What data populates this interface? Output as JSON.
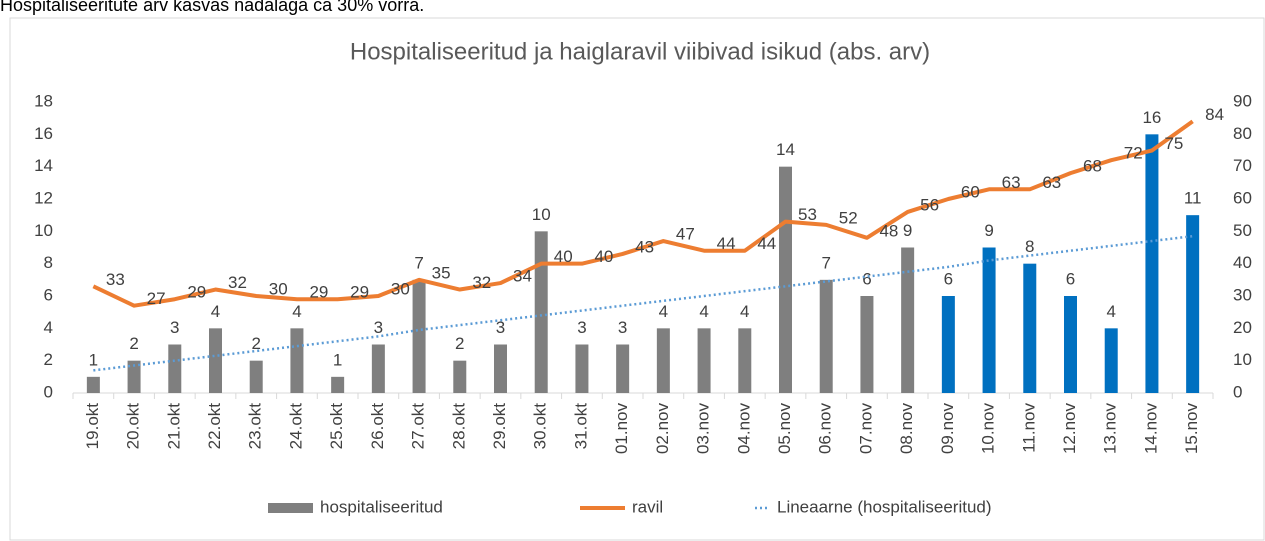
{
  "header": {
    "text": "Hospitaliseeritute arv kasvas nädalaga ca 30% võrra."
  },
  "chart_data": {
    "type": "bar",
    "title": "Hospitaliseeritud ja haiglaravil viibivad isikud (abs. arv)",
    "categories": [
      "19.okt",
      "20.okt",
      "21.okt",
      "22.okt",
      "23.okt",
      "24.okt",
      "25.okt",
      "26.okt",
      "27.okt",
      "28.okt",
      "29.okt",
      "30.okt",
      "31.okt",
      "01.nov",
      "02.nov",
      "03.nov",
      "04.nov",
      "05.nov",
      "06.nov",
      "07.nov",
      "08.nov",
      "09.nov",
      "10.nov",
      "11.nov",
      "12.nov",
      "13.nov",
      "14.nov",
      "15.nov"
    ],
    "series": [
      {
        "name": "hospitaliseeritud",
        "type": "bar",
        "color": "#7f7f7f",
        "colors": [
          "#7f7f7f",
          "#7f7f7f",
          "#7f7f7f",
          "#7f7f7f",
          "#7f7f7f",
          "#7f7f7f",
          "#7f7f7f",
          "#7f7f7f",
          "#7f7f7f",
          "#7f7f7f",
          "#7f7f7f",
          "#7f7f7f",
          "#7f7f7f",
          "#7f7f7f",
          "#7f7f7f",
          "#7f7f7f",
          "#7f7f7f",
          "#7f7f7f",
          "#7f7f7f",
          "#7f7f7f",
          "#7f7f7f",
          "#0070c0",
          "#0070c0",
          "#0070c0",
          "#0070c0",
          "#0070c0",
          "#0070c0",
          "#0070c0"
        ],
        "values": [
          1,
          2,
          3,
          4,
          2,
          4,
          1,
          3,
          7,
          2,
          3,
          10,
          3,
          3,
          4,
          4,
          4,
          14,
          7,
          6,
          9,
          6,
          9,
          8,
          6,
          4,
          16,
          11
        ]
      },
      {
        "name": "ravil",
        "type": "line",
        "axis": "y2",
        "color": "#ed7d31",
        "values": [
          33,
          27,
          29,
          32,
          30,
          29,
          29,
          30,
          35,
          32,
          34,
          40,
          40,
          43,
          47,
          44,
          44,
          53,
          52,
          48,
          56,
          60,
          63,
          63,
          68,
          72,
          75,
          84
        ]
      },
      {
        "name": "Lineaarne (hospitaliseeritud)",
        "type": "trend",
        "color": "#5b9bd5",
        "values": [
          1.4,
          1.7,
          2.0,
          2.3,
          2.6,
          2.9,
          3.2,
          3.5,
          3.9,
          4.2,
          4.5,
          4.8,
          5.1,
          5.4,
          5.7,
          6.0,
          6.3,
          6.6,
          6.9,
          7.2,
          7.5,
          7.8,
          8.2,
          8.5,
          8.8,
          9.1,
          9.4,
          9.7
        ]
      }
    ],
    "ylim": [
      0,
      18
    ],
    "yticks": [
      0,
      2,
      4,
      6,
      8,
      10,
      12,
      14,
      16,
      18
    ],
    "y2lim": [
      0,
      90
    ],
    "y2ticks": [
      0,
      10,
      20,
      30,
      40,
      50,
      60,
      70,
      80,
      90
    ],
    "legend": "bottom"
  }
}
